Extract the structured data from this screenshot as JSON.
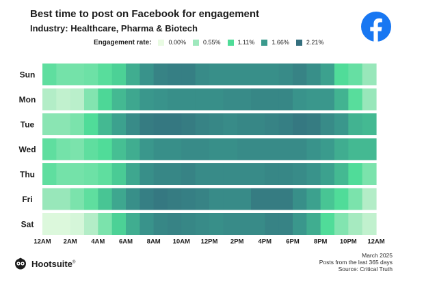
{
  "header": {
    "title": "Best time to post on Facebook for engagement",
    "subtitle": "Industry: Healthcare, Pharma & Biotech"
  },
  "legend": {
    "title": "Engagement rate:",
    "items": [
      {
        "label": "0.00%",
        "color": "#e9fbe3"
      },
      {
        "label": "0.55%",
        "color": "#9fe8bd"
      },
      {
        "label": "1.11%",
        "color": "#4fdc98"
      },
      {
        "label": "1.66%",
        "color": "#3a9a8d"
      },
      {
        "label": "2.21%",
        "color": "#346f7e"
      }
    ]
  },
  "brand": {
    "facebook_icon": "facebook-logo",
    "facebook_color": "#1877f2",
    "footer_logo_icon": "hootsuite-owl",
    "footer_logo_text": "Hootsuite",
    "footer_logo_mark": "®"
  },
  "footer": {
    "date": "March 2025",
    "period": "Posts from the last 365 days",
    "source": "Source: Critical Truth"
  },
  "chart_data": {
    "type": "heatmap",
    "title": "Best time to post on Facebook for engagement",
    "subtitle": "Industry: Healthcare, Pharma & Biotech",
    "unit": "Engagement rate (%)",
    "color_scale": {
      "stops": [
        0.0,
        0.55,
        1.11,
        1.66,
        2.21
      ],
      "colors": [
        "#e9fbe3",
        "#9fe8bd",
        "#4fdc98",
        "#3a9a8d",
        "#346f7e"
      ]
    },
    "days": [
      "Sun",
      "Mon",
      "Tue",
      "Wed",
      "Thu",
      "Fri",
      "Sat"
    ],
    "hours": [
      0,
      1,
      2,
      3,
      4,
      5,
      6,
      7,
      8,
      9,
      10,
      11,
      12,
      13,
      14,
      15,
      16,
      17,
      18,
      19,
      20,
      21,
      22,
      23
    ],
    "x_tick_labels": [
      "12AM",
      "2AM",
      "4AM",
      "6AM",
      "8AM",
      "10AM",
      "12PM",
      "2PM",
      "4PM",
      "6PM",
      "8PM",
      "10PM",
      "12AM"
    ],
    "values": [
      [
        1.0,
        0.85,
        0.85,
        0.9,
        1.05,
        1.2,
        1.5,
        1.75,
        1.95,
        2.0,
        2.0,
        1.85,
        1.8,
        1.8,
        1.8,
        1.8,
        1.8,
        1.85,
        1.95,
        1.8,
        1.6,
        1.1,
        0.95,
        0.6
      ],
      [
        0.4,
        0.3,
        0.35,
        0.75,
        1.15,
        1.4,
        1.55,
        1.7,
        1.75,
        1.8,
        1.8,
        1.8,
        1.8,
        1.85,
        1.85,
        1.9,
        1.9,
        1.9,
        1.75,
        1.7,
        1.7,
        1.45,
        1.05,
        0.6
      ],
      [
        0.7,
        0.7,
        0.8,
        1.1,
        1.4,
        1.6,
        1.85,
        2.05,
        2.1,
        2.1,
        2.05,
        1.95,
        1.9,
        1.85,
        1.9,
        1.9,
        1.95,
        2.0,
        2.1,
        2.05,
        1.85,
        1.7,
        1.45,
        1.4
      ],
      [
        1.0,
        0.85,
        0.8,
        1.0,
        1.1,
        1.35,
        1.5,
        1.7,
        1.8,
        1.8,
        1.85,
        1.85,
        1.8,
        1.8,
        1.85,
        1.85,
        1.85,
        1.85,
        1.85,
        1.75,
        1.65,
        1.5,
        1.4,
        1.4
      ],
      [
        1.0,
        0.85,
        0.85,
        0.9,
        1.0,
        1.25,
        1.55,
        1.8,
        1.9,
        1.9,
        1.95,
        1.85,
        1.85,
        1.85,
        1.85,
        1.85,
        1.9,
        1.9,
        1.85,
        1.75,
        1.6,
        1.4,
        1.1,
        0.8
      ],
      [
        0.6,
        0.6,
        0.8,
        1.0,
        1.3,
        1.55,
        1.8,
        2.0,
        2.1,
        2.05,
        2.0,
        1.95,
        1.85,
        1.85,
        1.85,
        2.05,
        2.05,
        2.05,
        1.8,
        1.6,
        1.3,
        1.1,
        0.8,
        0.4
      ],
      [
        0.1,
        0.1,
        0.15,
        0.4,
        0.8,
        1.2,
        1.5,
        1.75,
        1.9,
        1.95,
        1.9,
        1.85,
        1.8,
        1.85,
        1.85,
        1.85,
        1.95,
        1.95,
        1.7,
        1.5,
        1.1,
        0.75,
        0.5,
        0.3
      ]
    ],
    "xlabel": "",
    "ylabel": ""
  }
}
